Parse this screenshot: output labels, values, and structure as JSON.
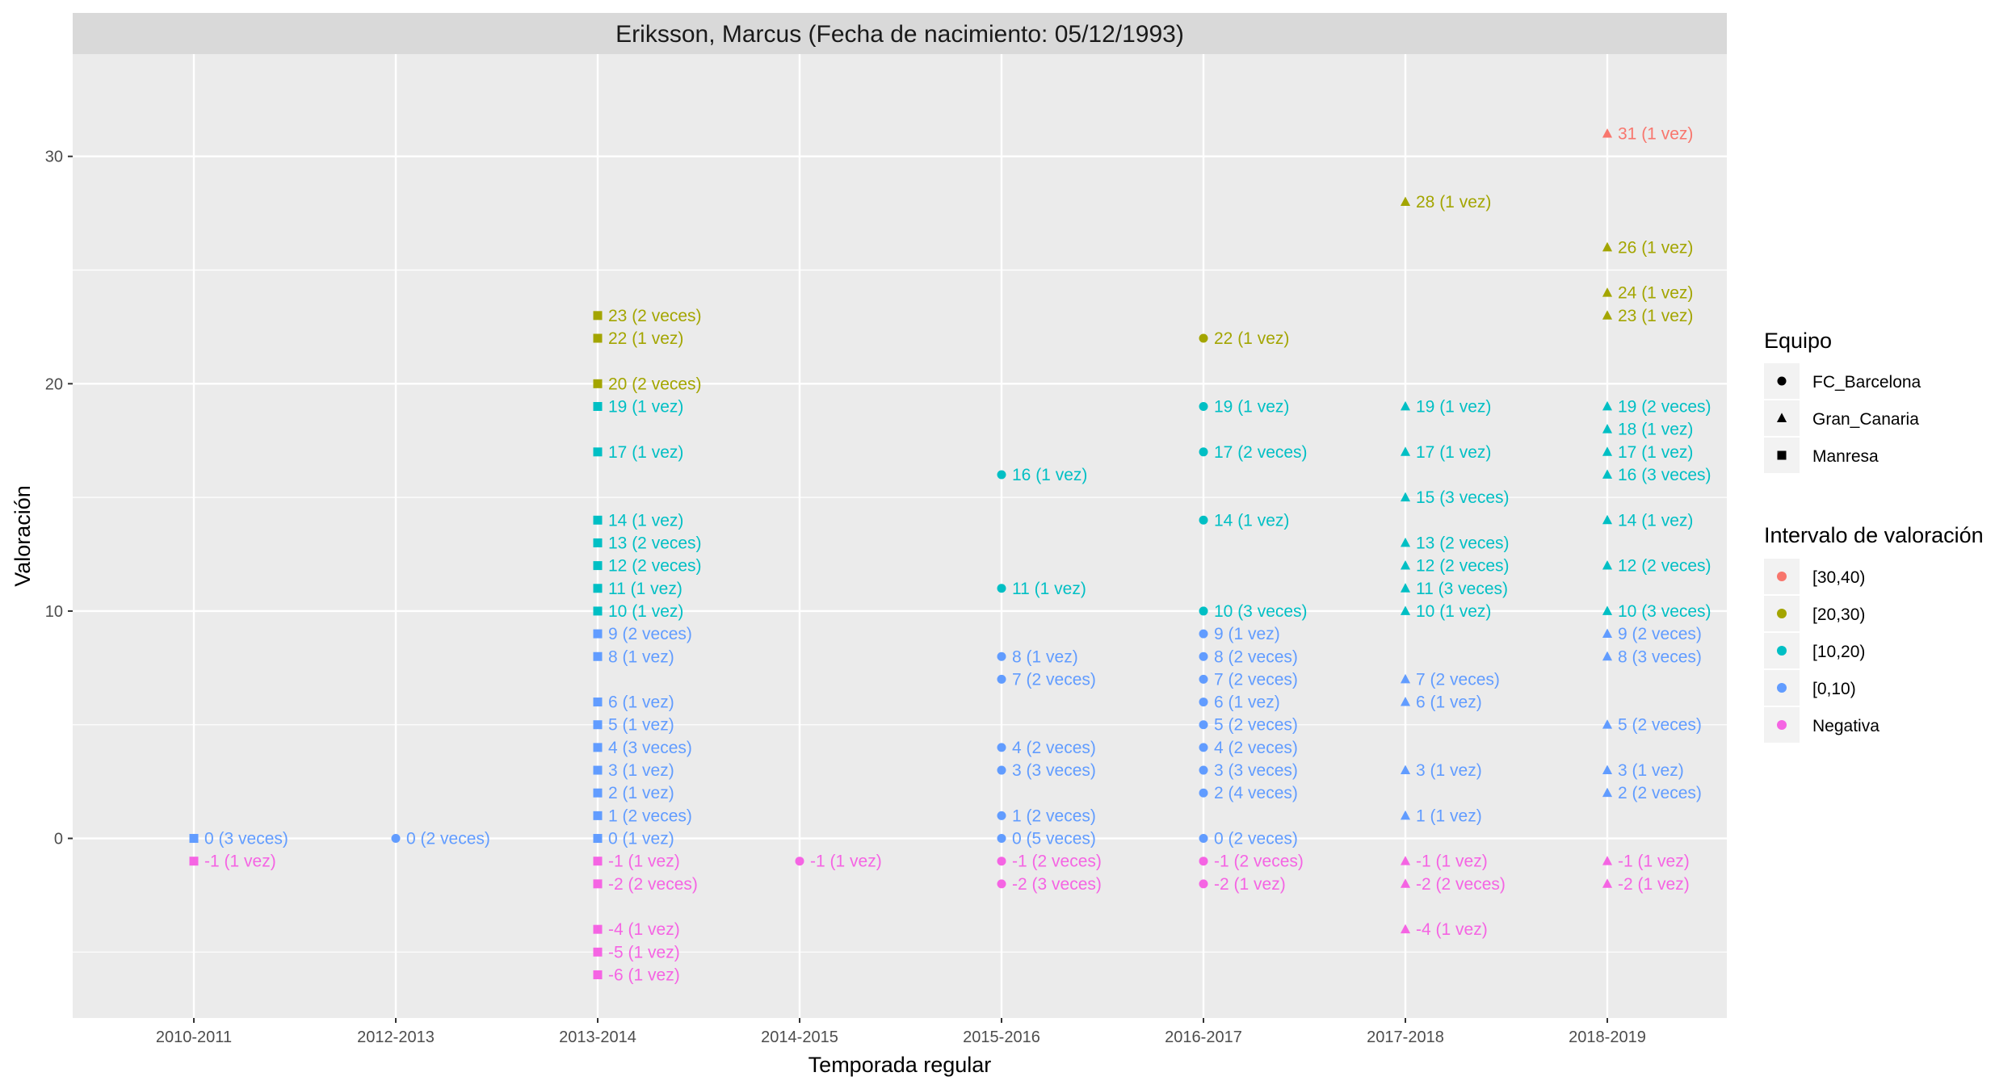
{
  "chart_data": {
    "type": "scatter",
    "title": "Eriksson, Marcus (Fecha de nacimiento: 05/12/1993)",
    "xlabel": "Temporada regular",
    "ylabel": "Valoración",
    "categories": [
      "2010-2011",
      "2012-2013",
      "2013-2014",
      "2014-2015",
      "2015-2016",
      "2016-2017",
      "2017-2018",
      "2018-2019"
    ],
    "ylim": [
      -7.9,
      34.5
    ],
    "yticks": [
      0,
      10,
      20,
      30
    ],
    "grid": true,
    "legend_placement": "right",
    "legend_shape": {
      "title": "Equipo",
      "items": [
        {
          "label": "FC_Barcelona",
          "shape": "circle"
        },
        {
          "label": "Gran_Canaria",
          "shape": "triangle"
        },
        {
          "label": "Manresa",
          "shape": "square"
        }
      ]
    },
    "legend_color": {
      "title": "Intervalo de valoración",
      "items": [
        {
          "label": "[30,40)",
          "color": "#F8766D"
        },
        {
          "label": "[20,30)",
          "color": "#A3A500"
        },
        {
          "label": "[10,20)",
          "color": "#00BFC4"
        },
        {
          "label": "[0,10)",
          "color": "#619CFF"
        },
        {
          "label": "Negativa",
          "color": "#F564E3"
        }
      ]
    },
    "points": [
      {
        "x": "2010-2011",
        "y": 0,
        "team": "Manresa",
        "label": "0 (3 veces)"
      },
      {
        "x": "2010-2011",
        "y": -1,
        "team": "Manresa",
        "label": "-1 (1 vez)"
      },
      {
        "x": "2012-2013",
        "y": 0,
        "team": "FC_Barcelona",
        "label": "0 (2 veces)"
      },
      {
        "x": "2013-2014",
        "y": 23,
        "team": "Manresa",
        "label": "23 (2 veces)"
      },
      {
        "x": "2013-2014",
        "y": 22,
        "team": "Manresa",
        "label": "22 (1 vez)"
      },
      {
        "x": "2013-2014",
        "y": 20,
        "team": "Manresa",
        "label": "20 (2 veces)"
      },
      {
        "x": "2013-2014",
        "y": 19,
        "team": "Manresa",
        "label": "19 (1 vez)"
      },
      {
        "x": "2013-2014",
        "y": 17,
        "team": "Manresa",
        "label": "17 (1 vez)"
      },
      {
        "x": "2013-2014",
        "y": 14,
        "team": "Manresa",
        "label": "14 (1 vez)"
      },
      {
        "x": "2013-2014",
        "y": 13,
        "team": "Manresa",
        "label": "13 (2 veces)"
      },
      {
        "x": "2013-2014",
        "y": 12,
        "team": "Manresa",
        "label": "12 (2 veces)"
      },
      {
        "x": "2013-2014",
        "y": 11,
        "team": "Manresa",
        "label": "11 (1 vez)"
      },
      {
        "x": "2013-2014",
        "y": 10,
        "team": "Manresa",
        "label": "10 (1 vez)"
      },
      {
        "x": "2013-2014",
        "y": 9,
        "team": "Manresa",
        "label": "9 (2 veces)"
      },
      {
        "x": "2013-2014",
        "y": 8,
        "team": "Manresa",
        "label": "8 (1 vez)"
      },
      {
        "x": "2013-2014",
        "y": 6,
        "team": "Manresa",
        "label": "6 (1 vez)"
      },
      {
        "x": "2013-2014",
        "y": 5,
        "team": "Manresa",
        "label": "5 (1 vez)"
      },
      {
        "x": "2013-2014",
        "y": 4,
        "team": "Manresa",
        "label": "4 (3 veces)"
      },
      {
        "x": "2013-2014",
        "y": 3,
        "team": "Manresa",
        "label": "3 (1 vez)"
      },
      {
        "x": "2013-2014",
        "y": 2,
        "team": "Manresa",
        "label": "2 (1 vez)"
      },
      {
        "x": "2013-2014",
        "y": 1,
        "team": "Manresa",
        "label": "1 (2 veces)"
      },
      {
        "x": "2013-2014",
        "y": 0,
        "team": "Manresa",
        "label": "0 (1 vez)"
      },
      {
        "x": "2013-2014",
        "y": -1,
        "team": "Manresa",
        "label": "-1 (1 vez)"
      },
      {
        "x": "2013-2014",
        "y": -2,
        "team": "Manresa",
        "label": "-2 (2 veces)"
      },
      {
        "x": "2013-2014",
        "y": -4,
        "team": "Manresa",
        "label": "-4 (1 vez)"
      },
      {
        "x": "2013-2014",
        "y": -5,
        "team": "Manresa",
        "label": "-5 (1 vez)"
      },
      {
        "x": "2013-2014",
        "y": -6,
        "team": "Manresa",
        "label": "-6 (1 vez)"
      },
      {
        "x": "2014-2015",
        "y": -1,
        "team": "FC_Barcelona",
        "label": "-1 (1 vez)"
      },
      {
        "x": "2015-2016",
        "y": 16,
        "team": "FC_Barcelona",
        "label": "16 (1 vez)"
      },
      {
        "x": "2015-2016",
        "y": 11,
        "team": "FC_Barcelona",
        "label": "11 (1 vez)"
      },
      {
        "x": "2015-2016",
        "y": 8,
        "team": "FC_Barcelona",
        "label": "8 (1 vez)"
      },
      {
        "x": "2015-2016",
        "y": 7,
        "team": "FC_Barcelona",
        "label": "7 (2 veces)"
      },
      {
        "x": "2015-2016",
        "y": 4,
        "team": "FC_Barcelona",
        "label": "4 (2 veces)"
      },
      {
        "x": "2015-2016",
        "y": 3,
        "team": "FC_Barcelona",
        "label": "3 (3 veces)"
      },
      {
        "x": "2015-2016",
        "y": 1,
        "team": "FC_Barcelona",
        "label": "1 (2 veces)"
      },
      {
        "x": "2015-2016",
        "y": 0,
        "team": "FC_Barcelona",
        "label": "0 (5 veces)"
      },
      {
        "x": "2015-2016",
        "y": -1,
        "team": "FC_Barcelona",
        "label": "-1 (2 veces)"
      },
      {
        "x": "2015-2016",
        "y": -2,
        "team": "FC_Barcelona",
        "label": "-2 (3 veces)"
      },
      {
        "x": "2016-2017",
        "y": 22,
        "team": "FC_Barcelona",
        "label": "22 (1 vez)"
      },
      {
        "x": "2016-2017",
        "y": 19,
        "team": "FC_Barcelona",
        "label": "19 (1 vez)"
      },
      {
        "x": "2016-2017",
        "y": 17,
        "team": "FC_Barcelona",
        "label": "17 (2 veces)"
      },
      {
        "x": "2016-2017",
        "y": 14,
        "team": "FC_Barcelona",
        "label": "14 (1 vez)"
      },
      {
        "x": "2016-2017",
        "y": 10,
        "team": "FC_Barcelona",
        "label": "10 (3 veces)"
      },
      {
        "x": "2016-2017",
        "y": 9,
        "team": "FC_Barcelona",
        "label": "9 (1 vez)"
      },
      {
        "x": "2016-2017",
        "y": 8,
        "team": "FC_Barcelona",
        "label": "8 (2 veces)"
      },
      {
        "x": "2016-2017",
        "y": 7,
        "team": "FC_Barcelona",
        "label": "7 (2 veces)"
      },
      {
        "x": "2016-2017",
        "y": 6,
        "team": "FC_Barcelona",
        "label": "6 (1 vez)"
      },
      {
        "x": "2016-2017",
        "y": 5,
        "team": "FC_Barcelona",
        "label": "5 (2 veces)"
      },
      {
        "x": "2016-2017",
        "y": 4,
        "team": "FC_Barcelona",
        "label": "4 (2 veces)"
      },
      {
        "x": "2016-2017",
        "y": 3,
        "team": "FC_Barcelona",
        "label": "3 (3 veces)"
      },
      {
        "x": "2016-2017",
        "y": 2,
        "team": "FC_Barcelona",
        "label": "2 (4 veces)"
      },
      {
        "x": "2016-2017",
        "y": 0,
        "team": "FC_Barcelona",
        "label": "0 (2 veces)"
      },
      {
        "x": "2016-2017",
        "y": -1,
        "team": "FC_Barcelona",
        "label": "-1 (2 veces)"
      },
      {
        "x": "2016-2017",
        "y": -2,
        "team": "FC_Barcelona",
        "label": "-2 (1 vez)"
      },
      {
        "x": "2017-2018",
        "y": 28,
        "team": "Gran_Canaria",
        "label": "28 (1 vez)"
      },
      {
        "x": "2017-2018",
        "y": 19,
        "team": "Gran_Canaria",
        "label": "19 (1 vez)"
      },
      {
        "x": "2017-2018",
        "y": 17,
        "team": "Gran_Canaria",
        "label": "17 (1 vez)"
      },
      {
        "x": "2017-2018",
        "y": 15,
        "team": "Gran_Canaria",
        "label": "15 (3 veces)"
      },
      {
        "x": "2017-2018",
        "y": 13,
        "team": "Gran_Canaria",
        "label": "13 (2 veces)"
      },
      {
        "x": "2017-2018",
        "y": 12,
        "team": "Gran_Canaria",
        "label": "12 (2 veces)"
      },
      {
        "x": "2017-2018",
        "y": 11,
        "team": "Gran_Canaria",
        "label": "11 (3 veces)"
      },
      {
        "x": "2017-2018",
        "y": 10,
        "team": "Gran_Canaria",
        "label": "10 (1 vez)"
      },
      {
        "x": "2017-2018",
        "y": 7,
        "team": "Gran_Canaria",
        "label": "7 (2 veces)"
      },
      {
        "x": "2017-2018",
        "y": 6,
        "team": "Gran_Canaria",
        "label": "6 (1 vez)"
      },
      {
        "x": "2017-2018",
        "y": 3,
        "team": "Gran_Canaria",
        "label": "3 (1 vez)"
      },
      {
        "x": "2017-2018",
        "y": 1,
        "team": "Gran_Canaria",
        "label": "1 (1 vez)"
      },
      {
        "x": "2017-2018",
        "y": -1,
        "team": "Gran_Canaria",
        "label": "-1 (1 vez)"
      },
      {
        "x": "2017-2018",
        "y": -2,
        "team": "Gran_Canaria",
        "label": "-2 (2 veces)"
      },
      {
        "x": "2017-2018",
        "y": -4,
        "team": "Gran_Canaria",
        "label": "-4 (1 vez)"
      },
      {
        "x": "2018-2019",
        "y": 31,
        "team": "Gran_Canaria",
        "label": "31 (1 vez)"
      },
      {
        "x": "2018-2019",
        "y": 26,
        "team": "Gran_Canaria",
        "label": "26 (1 vez)"
      },
      {
        "x": "2018-2019",
        "y": 24,
        "team": "Gran_Canaria",
        "label": "24 (1 vez)"
      },
      {
        "x": "2018-2019",
        "y": 23,
        "team": "Gran_Canaria",
        "label": "23 (1 vez)"
      },
      {
        "x": "2018-2019",
        "y": 19,
        "team": "Gran_Canaria",
        "label": "19 (2 veces)"
      },
      {
        "x": "2018-2019",
        "y": 18,
        "team": "Gran_Canaria",
        "label": "18 (1 vez)"
      },
      {
        "x": "2018-2019",
        "y": 17,
        "team": "Gran_Canaria",
        "label": "17 (1 vez)"
      },
      {
        "x": "2018-2019",
        "y": 16,
        "team": "Gran_Canaria",
        "label": "16 (3 veces)"
      },
      {
        "x": "2018-2019",
        "y": 14,
        "team": "Gran_Canaria",
        "label": "14 (1 vez)"
      },
      {
        "x": "2018-2019",
        "y": 12,
        "team": "Gran_Canaria",
        "label": "12 (2 veces)"
      },
      {
        "x": "2018-2019",
        "y": 10,
        "team": "Gran_Canaria",
        "label": "10 (3 veces)"
      },
      {
        "x": "2018-2019",
        "y": 9,
        "team": "Gran_Canaria",
        "label": "9 (2 veces)"
      },
      {
        "x": "2018-2019",
        "y": 8,
        "team": "Gran_Canaria",
        "label": "8 (3 veces)"
      },
      {
        "x": "2018-2019",
        "y": 5,
        "team": "Gran_Canaria",
        "label": "5 (2 veces)"
      },
      {
        "x": "2018-2019",
        "y": 3,
        "team": "Gran_Canaria",
        "label": "3 (1 vez)"
      },
      {
        "x": "2018-2019",
        "y": 2,
        "team": "Gran_Canaria",
        "label": "2 (2 veces)"
      },
      {
        "x": "2018-2019",
        "y": -1,
        "team": "Gran_Canaria",
        "label": "-1 (1 vez)"
      },
      {
        "x": "2018-2019",
        "y": -2,
        "team": "Gran_Canaria",
        "label": "-2 (1 vez)"
      }
    ]
  }
}
